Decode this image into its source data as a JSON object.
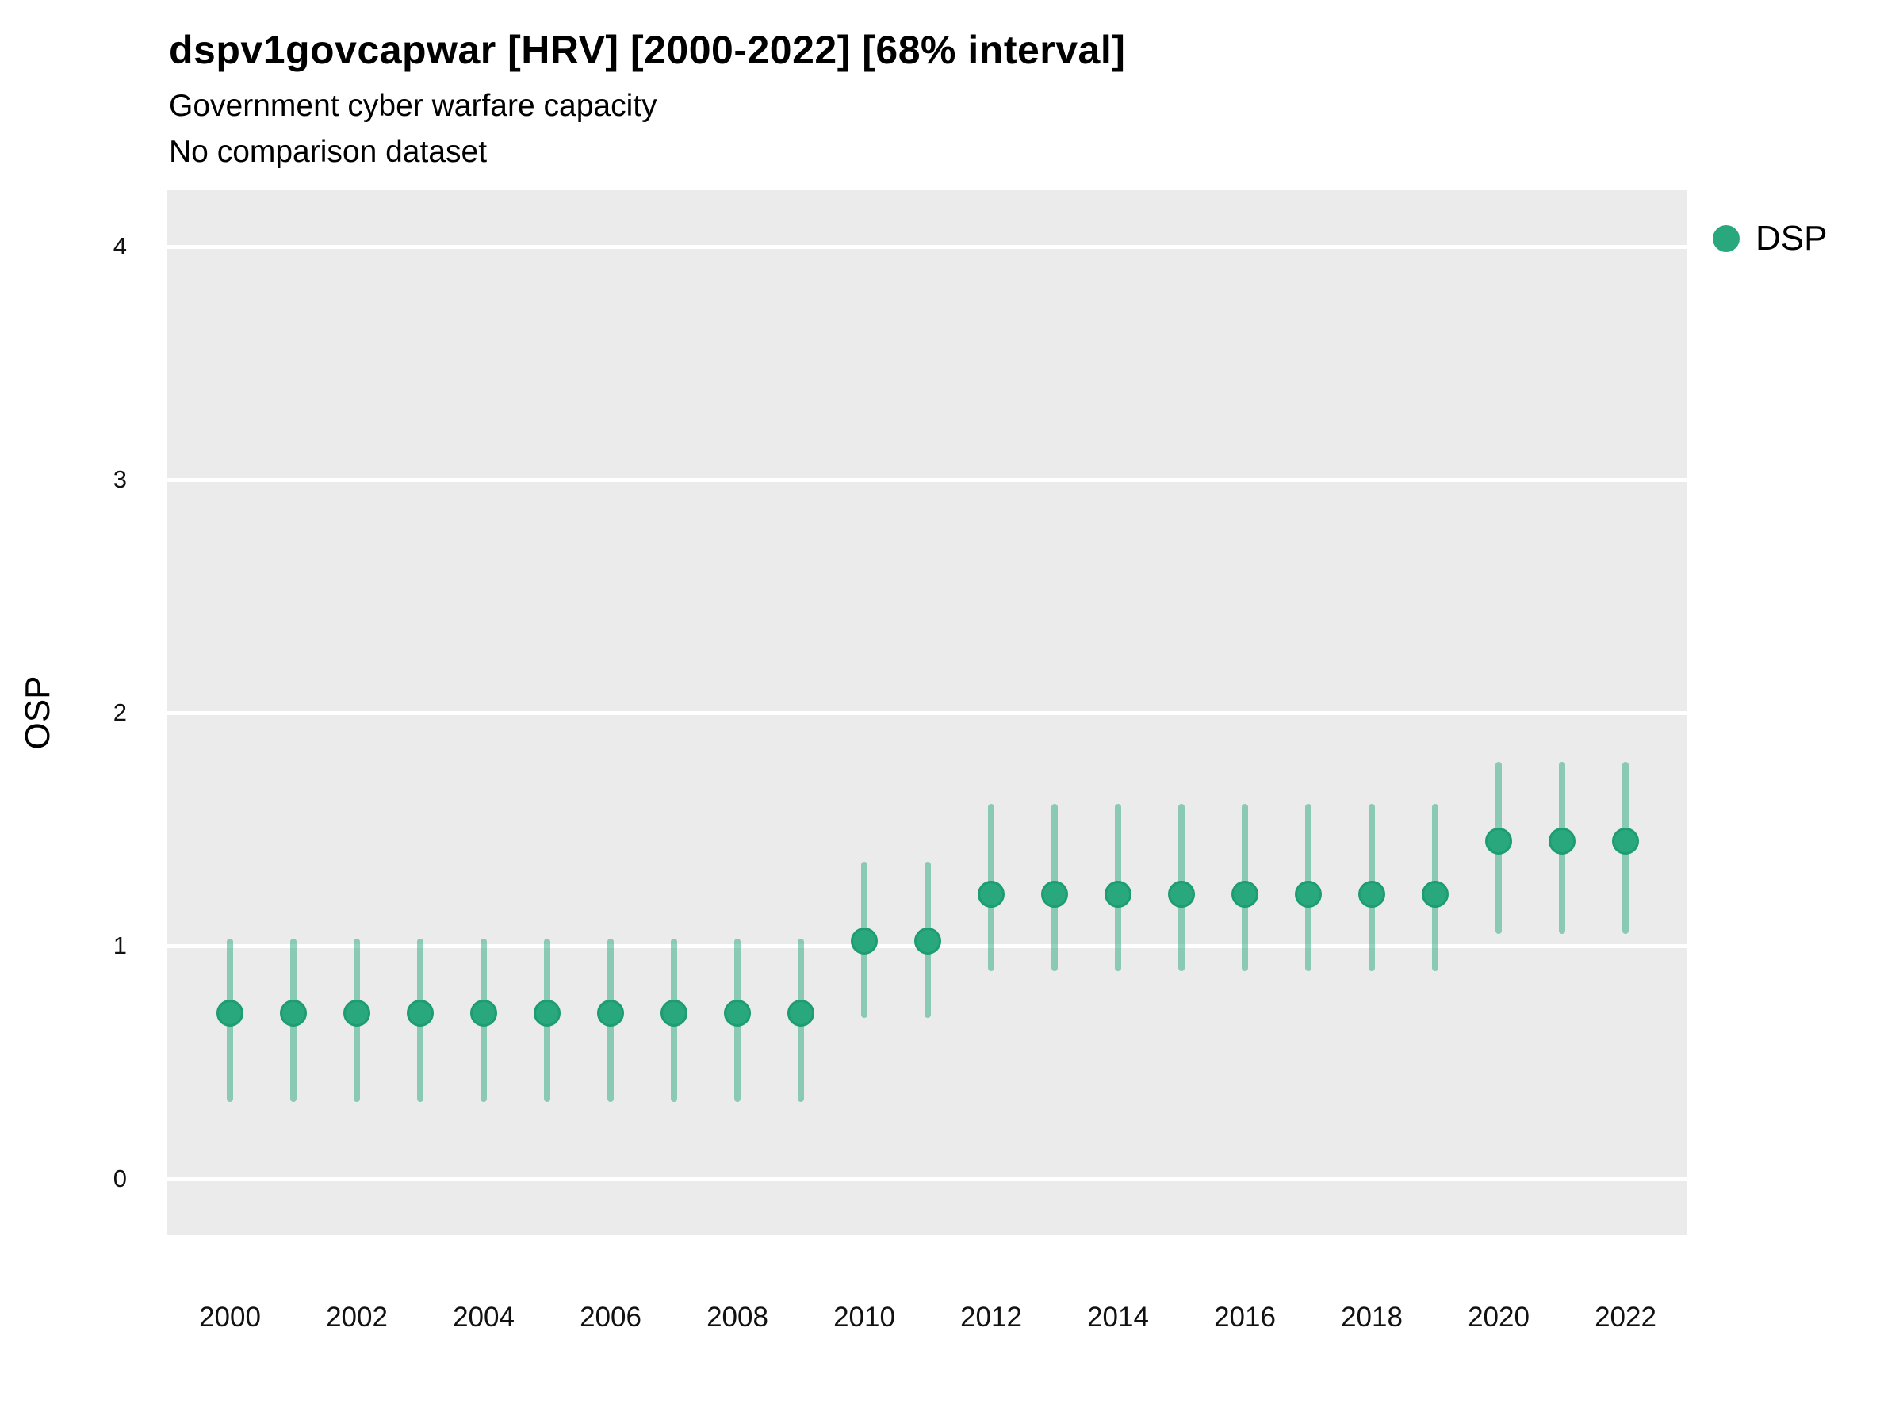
{
  "header": {
    "title": "dspv1govcapwar [HRV] [2000-2022] [68% interval]",
    "subtitle": "Government cyber warfare capacity",
    "comparison_note": "No comparison dataset"
  },
  "legend": {
    "items": [
      {
        "label": "DSP",
        "color": "#29a87d"
      }
    ]
  },
  "colors": {
    "point_fill": "#29a87d",
    "point_stroke": "#1e9c72",
    "interval_bar": "rgba(41,168,125,0.5)",
    "panel_background": "#ebebeb",
    "gridline": "#ffffff",
    "text": "#000000"
  },
  "chart_data": {
    "type": "pointrange",
    "title": "dspv1govcapwar [HRV] [2000-2022] [68% interval]",
    "subtitle": "Government cyber warfare capacity",
    "note": "No comparison dataset",
    "xlabel": "",
    "ylabel": "OSP",
    "interval_level": "68%",
    "ylim": [
      -0.24,
      4.24
    ],
    "y_ticks": [
      0,
      1,
      2,
      3,
      4
    ],
    "x_tick_labels": [
      2000,
      2002,
      2004,
      2006,
      2008,
      2010,
      2012,
      2014,
      2016,
      2018,
      2020,
      2022
    ],
    "grid": "major-horizontal-only",
    "legend_position": "right-top",
    "series": [
      {
        "name": "DSP",
        "x": [
          2000,
          2001,
          2002,
          2003,
          2004,
          2005,
          2006,
          2007,
          2008,
          2009,
          2010,
          2011,
          2012,
          2013,
          2014,
          2015,
          2016,
          2017,
          2018,
          2019,
          2020,
          2021,
          2022
        ],
        "estimate": [
          0.71,
          0.71,
          0.71,
          0.71,
          0.71,
          0.71,
          0.71,
          0.71,
          0.71,
          0.71,
          1.02,
          1.02,
          1.22,
          1.22,
          1.22,
          1.22,
          1.22,
          1.22,
          1.22,
          1.22,
          1.45,
          1.45,
          1.45
        ],
        "lower": [
          0.33,
          0.33,
          0.33,
          0.33,
          0.33,
          0.33,
          0.33,
          0.33,
          0.33,
          0.33,
          0.69,
          0.69,
          0.89,
          0.89,
          0.89,
          0.89,
          0.89,
          0.89,
          0.89,
          0.89,
          1.05,
          1.05,
          1.05
        ],
        "upper": [
          1.03,
          1.03,
          1.03,
          1.03,
          1.03,
          1.03,
          1.03,
          1.03,
          1.03,
          1.03,
          1.36,
          1.36,
          1.61,
          1.61,
          1.61,
          1.61,
          1.61,
          1.61,
          1.61,
          1.61,
          1.79,
          1.79,
          1.79
        ]
      }
    ]
  }
}
